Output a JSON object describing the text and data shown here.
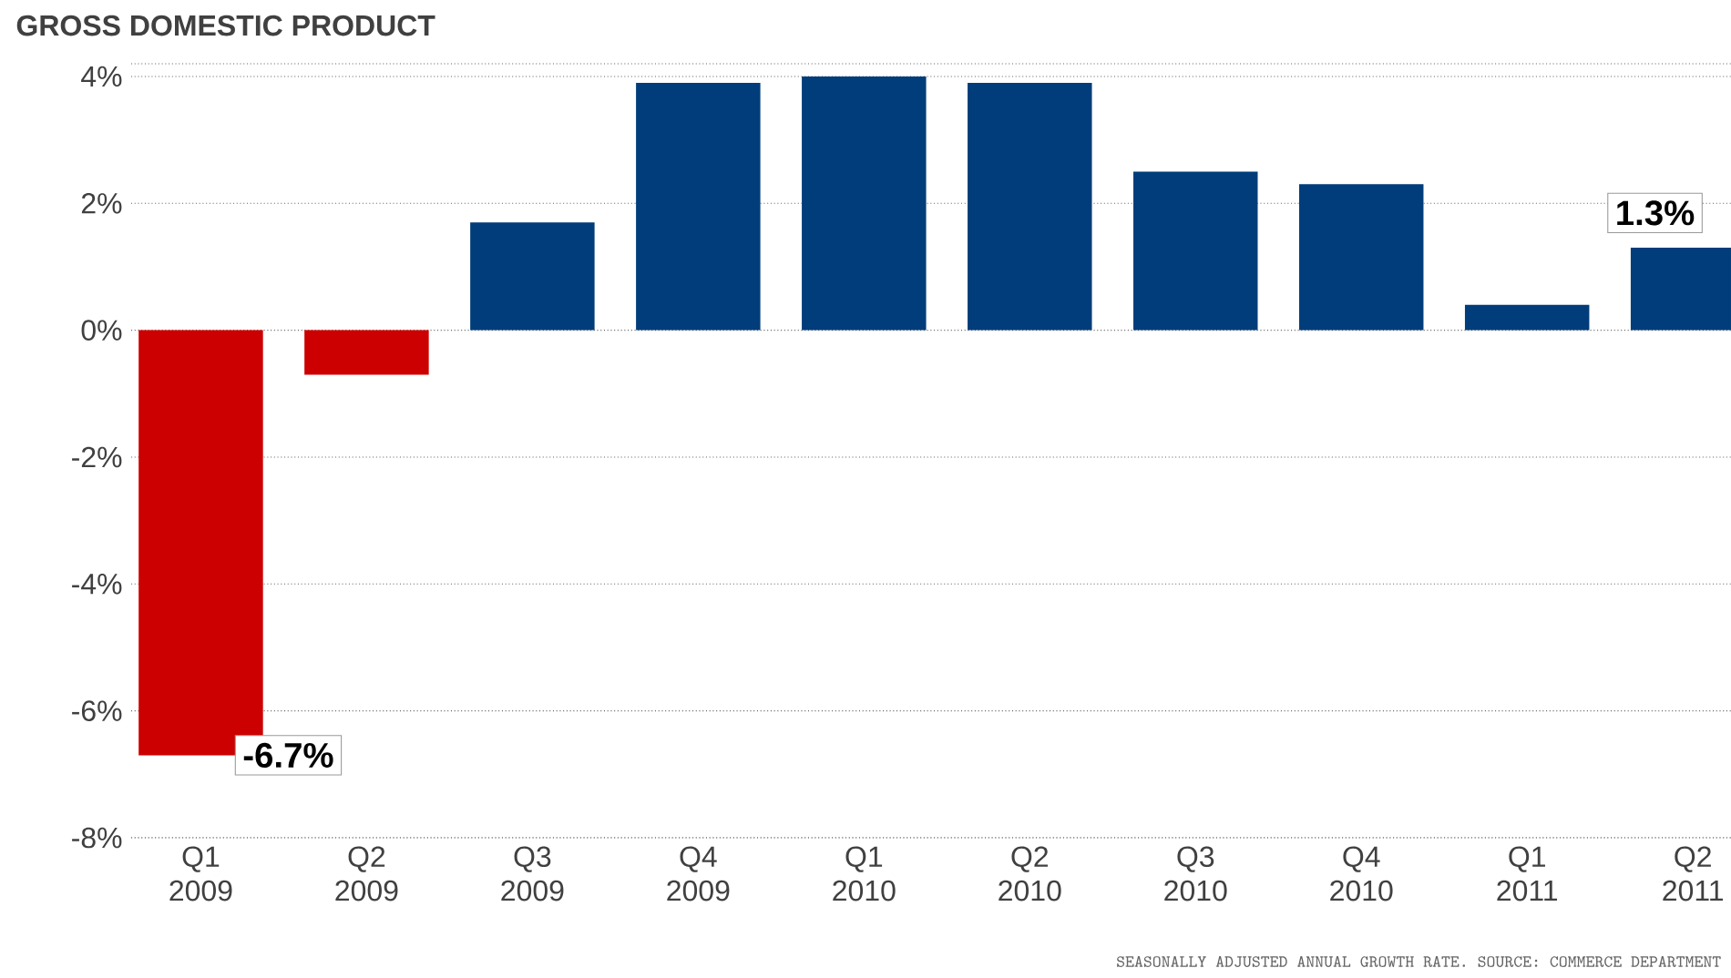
{
  "chart_data": {
    "type": "bar",
    "title": "GROSS DOMESTIC PRODUCT",
    "categories": [
      "Q1 2009",
      "Q2 2009",
      "Q3 2009",
      "Q4 2009",
      "Q1 2010",
      "Q2 2010",
      "Q3 2010",
      "Q4 2010",
      "Q1 2011",
      "Q2 2011"
    ],
    "values": [
      -6.7,
      -0.7,
      1.7,
      3.9,
      4.0,
      3.9,
      2.5,
      2.3,
      0.4,
      1.3
    ],
    "colors": [
      "#cc0000",
      "#cc0000",
      "#003d7a",
      "#003d7a",
      "#003d7a",
      "#003d7a",
      "#003d7a",
      "#003d7a",
      "#003d7a",
      "#003d7a"
    ],
    "value_labels": [
      "-6.7%",
      null,
      null,
      null,
      null,
      null,
      null,
      null,
      null,
      "1.3%"
    ],
    "ylim": [
      -8,
      4.2
    ],
    "yticks": [
      {
        "value": -8,
        "label": "-8%"
      },
      {
        "value": -6,
        "label": "-6%"
      },
      {
        "value": -4,
        "label": "-4%"
      },
      {
        "value": -2,
        "label": "-2%"
      },
      {
        "value": 0,
        "label": "0%"
      },
      {
        "value": 2,
        "label": "2%"
      },
      {
        "value": 4,
        "label": "4%"
      }
    ],
    "grid": "y",
    "annotations": [
      "SEASONALLY ADJUSTED ANNUAL GROWTH RATE. SOURCE: COMMERCE DEPARTMENT"
    ]
  }
}
